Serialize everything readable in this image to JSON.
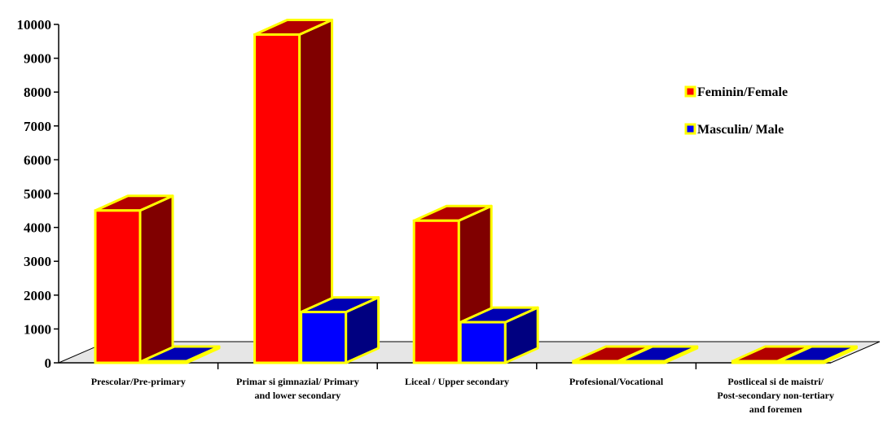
{
  "chart_data": {
    "type": "bar",
    "categories": [
      "Prescolar/Pre-primary",
      "Primar si gimnazial/ Primary and lower secondary",
      "Liceal / Upper secondary",
      "Profesional/Vocational",
      "Postliceal si de maistri/ Post-secondary non-tertiary and foremen"
    ],
    "series": [
      {
        "name": "Feminin/Female",
        "values": [
          4500,
          9700,
          4200,
          0,
          0
        ]
      },
      {
        "name": "Masculin/ Male",
        "values": [
          0,
          1500,
          1200,
          0,
          0
        ]
      }
    ],
    "ylim": [
      0,
      10000
    ],
    "yticks": [
      0,
      1000,
      2000,
      3000,
      4000,
      5000,
      6000,
      7000,
      8000,
      9000,
      10000
    ],
    "grid": false,
    "legend_position": "top-right",
    "title": "",
    "xlabel": "",
    "ylabel": ""
  },
  "colors": {
    "female_front": "#ff0000",
    "female_side": "#800000",
    "female_top": "#b30000",
    "male_front": "#0000ff",
    "male_side": "#000080",
    "male_top": "#0000b3",
    "outline": "#ffff00",
    "floor": "#e6e6e6"
  }
}
